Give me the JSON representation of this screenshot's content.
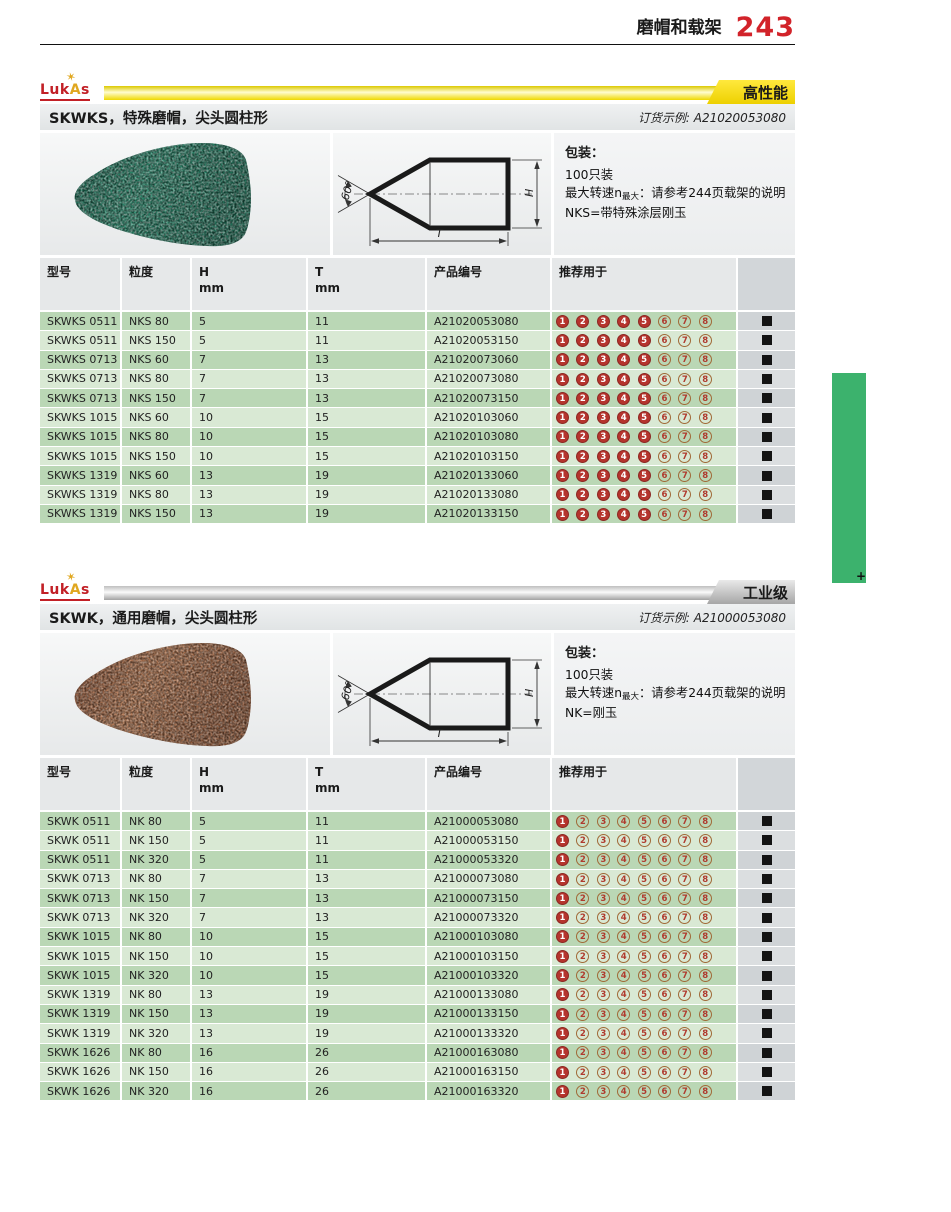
{
  "page": {
    "header_title": "磨帽和载架",
    "page_number": "243"
  },
  "brand": {
    "pre": "Luk",
    "mid": "A",
    "post": "s",
    "roo_icon": "kangaroo-figure"
  },
  "legend_numbers": [
    "1",
    "2",
    "3",
    "4",
    "5",
    "6",
    "7",
    "8"
  ],
  "colors": {
    "accent_red": "#d2232a",
    "circle_filled_red": "#b5342d",
    "badge_yellow": "#f5d800",
    "badge_gray": "#b5b5b5",
    "row_green_dark": "#bad7b5",
    "row_green_light": "#d9e9d4",
    "side_tab_green": "#3cb26d",
    "product_green": "#2e9072",
    "product_brown": "#a9724f"
  },
  "sections": [
    {
      "grade": "高性能",
      "title": "SKWKS，特殊磨帽，尖头圆柱形",
      "order_label": "订货示例:",
      "order_value": "A21020053080",
      "packaging_title": "包装：",
      "packaging_qty": "100只装",
      "speed_prefix": "最大转速n",
      "speed_sub": "最大",
      "speed_suffix": "：请参考244页载架的说明",
      "abrasive_note": "NKS=带特殊涂层刚玉",
      "drawing": {
        "angle": "60°",
        "h_label": "H",
        "t_label": "T"
      },
      "table": {
        "col_model": "型号",
        "col_grit": "粒度",
        "col_h": "H",
        "col_t": "T",
        "col_unit": "mm",
        "col_part": "产品编号",
        "col_recommend": "推荐用于",
        "filled_count": 5,
        "rows": [
          [
            "SKWKS 0511",
            "NKS 80",
            "5",
            "11",
            "A21020053080"
          ],
          [
            "SKWKS 0511",
            "NKS 150",
            "5",
            "11",
            "A21020053150"
          ],
          [
            "SKWKS 0713",
            "NKS 60",
            "7",
            "13",
            "A21020073060"
          ],
          [
            "SKWKS 0713",
            "NKS 80",
            "7",
            "13",
            "A21020073080"
          ],
          [
            "SKWKS 0713",
            "NKS 150",
            "7",
            "13",
            "A21020073150"
          ],
          [
            "SKWKS 1015",
            "NKS 60",
            "10",
            "15",
            "A21020103060"
          ],
          [
            "SKWKS 1015",
            "NKS 80",
            "10",
            "15",
            "A21020103080"
          ],
          [
            "SKWKS 1015",
            "NKS 150",
            "10",
            "15",
            "A21020103150"
          ],
          [
            "SKWKS 1319",
            "NKS 60",
            "13",
            "19",
            "A21020133060"
          ],
          [
            "SKWKS 1319",
            "NKS 80",
            "13",
            "19",
            "A21020133080"
          ],
          [
            "SKWKS 1319",
            "NKS 150",
            "13",
            "19",
            "A21020133150"
          ]
        ]
      }
    },
    {
      "grade": "工业级",
      "title": "SKWK，通用磨帽，尖头圆柱形",
      "order_label": "订货示例:",
      "order_value": "A21000053080",
      "packaging_title": "包装：",
      "packaging_qty": "100只装",
      "speed_prefix": "最大转速n",
      "speed_sub": "最大",
      "speed_suffix": "：请参考244页载架的说明",
      "abrasive_note": "NK=刚玉",
      "drawing": {
        "angle": "60°",
        "h_label": "H",
        "t_label": "T"
      },
      "table": {
        "col_model": "型号",
        "col_grit": "粒度",
        "col_h": "H",
        "col_t": "T",
        "col_unit": "mm",
        "col_part": "产品编号",
        "col_recommend": "推荐用于",
        "filled_count": 1,
        "rows": [
          [
            "SKWK 0511",
            "NK 80",
            "5",
            "11",
            "A21000053080"
          ],
          [
            "SKWK 0511",
            "NK 150",
            "5",
            "11",
            "A21000053150"
          ],
          [
            "SKWK 0511",
            "NK 320",
            "5",
            "11",
            "A21000053320"
          ],
          [
            "SKWK 0713",
            "NK 80",
            "7",
            "13",
            "A21000073080"
          ],
          [
            "SKWK 0713",
            "NK 150",
            "7",
            "13",
            "A21000073150"
          ],
          [
            "SKWK 0713",
            "NK 320",
            "7",
            "13",
            "A21000073320"
          ],
          [
            "SKWK 1015",
            "NK 80",
            "10",
            "15",
            "A21000103080"
          ],
          [
            "SKWK 1015",
            "NK 150",
            "10",
            "15",
            "A21000103150"
          ],
          [
            "SKWK 1015",
            "NK 320",
            "10",
            "15",
            "A21000103320"
          ],
          [
            "SKWK 1319",
            "NK 80",
            "13",
            "19",
            "A21000133080"
          ],
          [
            "SKWK 1319",
            "NK 150",
            "13",
            "19",
            "A21000133150"
          ],
          [
            "SKWK 1319",
            "NK 320",
            "13",
            "19",
            "A21000133320"
          ],
          [
            "SKWK 1626",
            "NK 80",
            "16",
            "26",
            "A21000163080"
          ],
          [
            "SKWK 1626",
            "NK 150",
            "16",
            "26",
            "A21000163150"
          ],
          [
            "SKWK 1626",
            "NK 320",
            "16",
            "26",
            "A21000163320"
          ]
        ]
      }
    }
  ]
}
